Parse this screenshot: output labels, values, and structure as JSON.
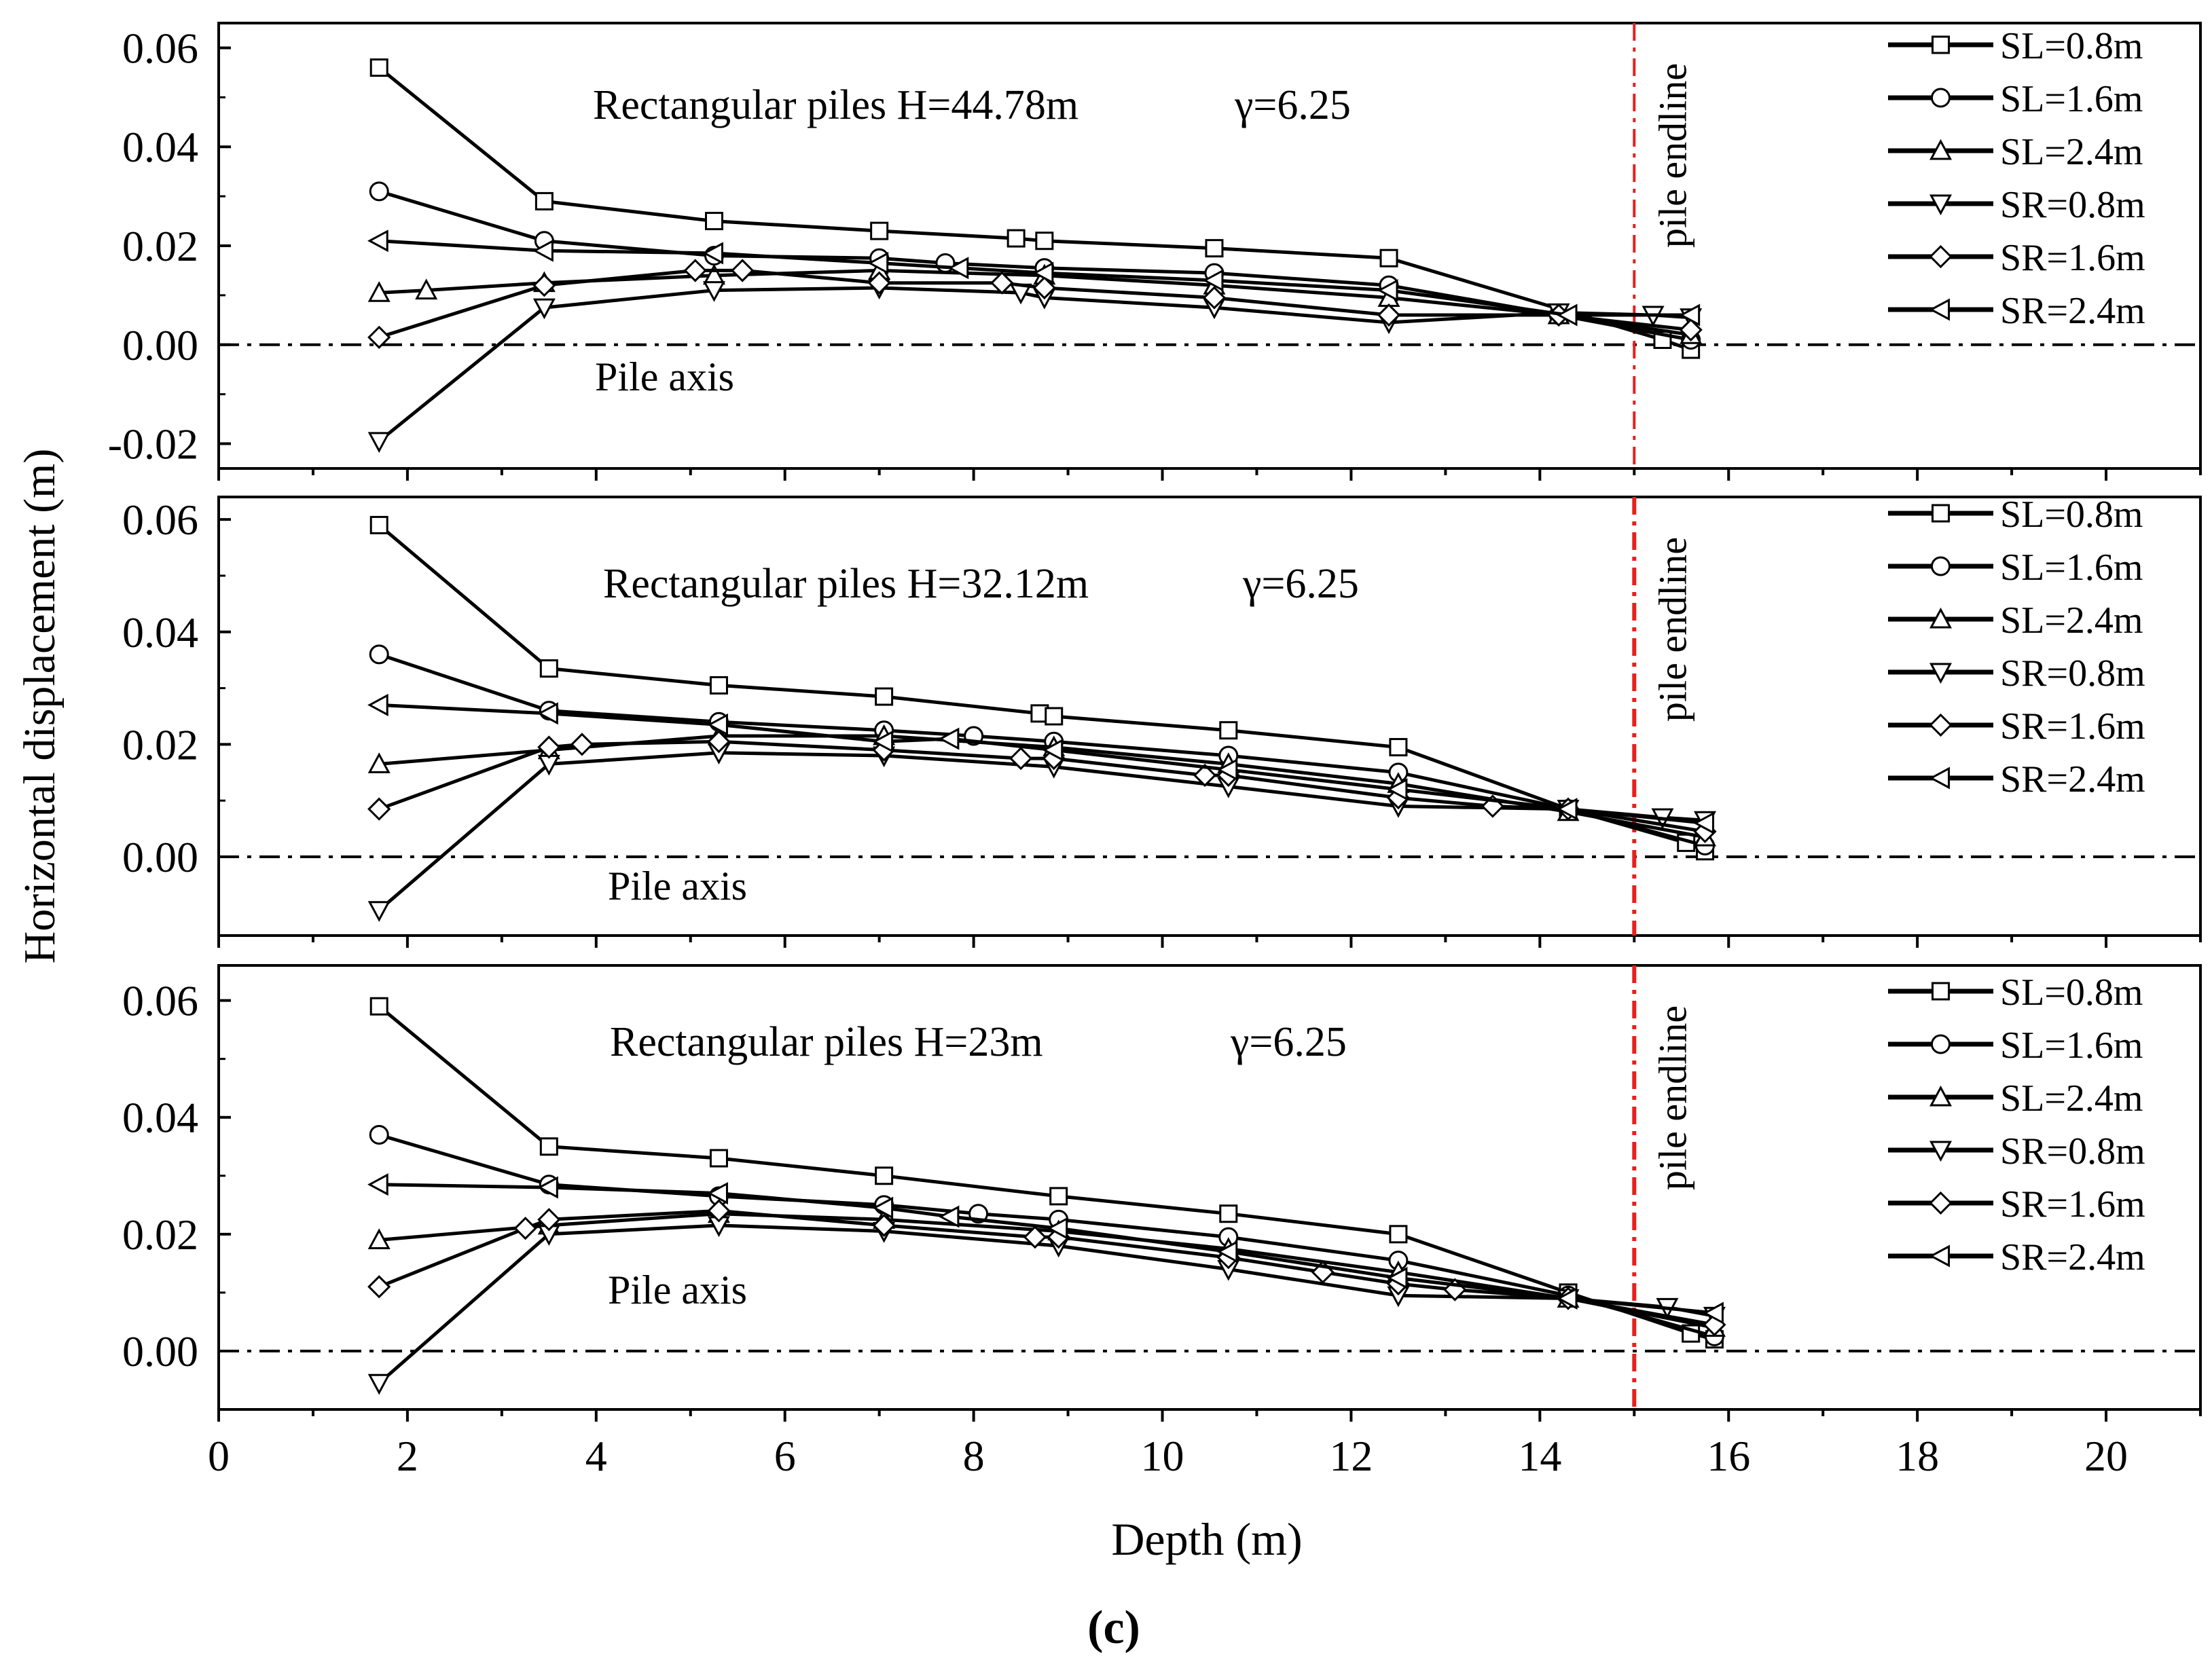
{
  "figure": {
    "panel_label": "(c)",
    "ylabel": "Horizontal displacement (m)",
    "xlabel": "Depth (m)",
    "x_ticks": [
      "0",
      "2",
      "4",
      "6",
      "8",
      "10",
      "12",
      "14",
      "16",
      "18",
      "20"
    ],
    "axis_label_pile_axis": "Pile axis",
    "endline_label": "pile endline",
    "endline_color": "#e8201c",
    "line_color": "#000000"
  },
  "chart_data": [
    {
      "type": "line",
      "title": "Rectangular piles  H=44.78m",
      "annotation_gamma": "γ=6.25",
      "pile_axis_label": "Pile axis",
      "xlim": [
        0,
        21
      ],
      "ylim": [
        -0.025,
        0.065
      ],
      "y_ticks": [
        "0.06",
        "0.04",
        "0.02",
        "0.00",
        "-0.02"
      ],
      "y_tick_values": [
        0.06,
        0.04,
        0.02,
        0.0,
        -0.02
      ],
      "pile_endline_x": 15,
      "legend": [
        "SL=0.8m",
        "SL=1.6m",
        "SL=2.4m",
        "SR=0.8m",
        "SR=1.6m",
        "SR=2.4m"
      ],
      "series": [
        {
          "name": "SL=0.8m",
          "marker": "square",
          "x": [
            1.7,
            3.45,
            5.25,
            7.0,
            8.45,
            8.75,
            10.55,
            12.4,
            15.3,
            15.6
          ],
          "y": [
            0.056,
            0.029,
            0.025,
            0.023,
            0.0215,
            0.021,
            0.0195,
            0.0175,
            0.001,
            -0.001
          ]
        },
        {
          "name": "SL=1.6m",
          "marker": "circle",
          "x": [
            1.7,
            3.45,
            5.25,
            7.0,
            7.7,
            8.75,
            10.55,
            12.4,
            14.2,
            15.6
          ],
          "y": [
            0.031,
            0.021,
            0.018,
            0.0175,
            0.0165,
            0.0155,
            0.0145,
            0.012,
            0.006,
            0.001
          ]
        },
        {
          "name": "SL=2.4m",
          "marker": "triangle-up",
          "x": [
            1.7,
            2.2,
            3.45,
            5.25,
            7.0,
            8.75,
            10.55,
            12.4,
            14.2,
            15.6
          ],
          "y": [
            0.0105,
            0.011,
            0.0125,
            0.014,
            0.015,
            0.014,
            0.012,
            0.0095,
            0.006,
            0.002
          ]
        },
        {
          "name": "SR=0.8m",
          "marker": "triangle-down",
          "x": [
            1.7,
            3.45,
            5.25,
            7.0,
            8.5,
            8.75,
            10.55,
            12.4,
            14.2,
            15.2,
            15.6
          ],
          "y": [
            -0.0195,
            0.0075,
            0.011,
            0.0115,
            0.0105,
            0.0095,
            0.0075,
            0.0045,
            0.0065,
            0.006,
            0.0055
          ]
        },
        {
          "name": "SR=1.6m",
          "marker": "diamond",
          "x": [
            1.7,
            3.45,
            5.05,
            5.55,
            7.0,
            8.3,
            8.75,
            10.55,
            12.4,
            14.2,
            15.6
          ],
          "y": [
            0.0015,
            0.012,
            0.015,
            0.015,
            0.0125,
            0.0125,
            0.0115,
            0.0095,
            0.006,
            0.006,
            0.003
          ]
        },
        {
          "name": "SR=2.4m",
          "marker": "triangle-left",
          "x": [
            1.7,
            3.45,
            5.25,
            7.0,
            7.85,
            8.75,
            10.55,
            12.4,
            14.3,
            15.6
          ],
          "y": [
            0.021,
            0.019,
            0.0185,
            0.0165,
            0.0155,
            0.0145,
            0.013,
            0.011,
            0.006,
            0.006
          ]
        }
      ]
    },
    {
      "type": "line",
      "title": "Rectangular piles  H=32.12m",
      "annotation_gamma": "γ=6.25",
      "pile_axis_label": "Pile axis",
      "xlim": [
        0,
        21
      ],
      "ylim": [
        -0.014,
        0.064
      ],
      "y_ticks": [
        "0.06",
        "0.04",
        "0.02",
        "0.00"
      ],
      "y_tick_values": [
        0.06,
        0.04,
        0.02,
        0.0
      ],
      "pile_endline_x": 15,
      "legend": [
        "SL=0.8m",
        "SL=1.6m",
        "SL=2.4m",
        "SR=0.8m",
        "SR=1.6m",
        "SR=2.4m"
      ],
      "series": [
        {
          "name": "SL=0.8m",
          "marker": "square",
          "x": [
            1.7,
            3.5,
            5.3,
            7.05,
            8.7,
            8.85,
            10.7,
            12.5,
            14.3,
            15.55,
            15.75
          ],
          "y": [
            0.059,
            0.0335,
            0.0305,
            0.0285,
            0.0255,
            0.025,
            0.0225,
            0.0195,
            0.0085,
            0.0025,
            0.001
          ]
        },
        {
          "name": "SL=1.6m",
          "marker": "circle",
          "x": [
            1.7,
            3.5,
            5.3,
            7.05,
            8.0,
            8.85,
            10.7,
            12.5,
            14.3,
            15.75
          ],
          "y": [
            0.036,
            0.026,
            0.024,
            0.0225,
            0.0215,
            0.0205,
            0.018,
            0.015,
            0.0085,
            0.002
          ]
        },
        {
          "name": "SL=2.4m",
          "marker": "triangle-up",
          "x": [
            1.7,
            3.5,
            5.3,
            7.05,
            8.85,
            10.7,
            12.5,
            14.3,
            15.75
          ],
          "y": [
            0.0165,
            0.019,
            0.0215,
            0.0215,
            0.0195,
            0.0165,
            0.013,
            0.008,
            0.0035
          ]
        },
        {
          "name": "SR=0.8m",
          "marker": "triangle-down",
          "x": [
            1.7,
            3.5,
            5.3,
            7.05,
            8.85,
            10.7,
            12.5,
            14.3,
            15.3,
            15.75
          ],
          "y": [
            -0.0095,
            0.0165,
            0.0185,
            0.018,
            0.016,
            0.0125,
            0.009,
            0.0085,
            0.007,
            0.0065
          ]
        },
        {
          "name": "SR=1.6m",
          "marker": "diamond",
          "x": [
            1.7,
            3.5,
            3.85,
            5.3,
            7.05,
            8.5,
            8.85,
            10.45,
            10.7,
            12.5,
            13.5,
            14.3,
            15.75
          ],
          "y": [
            0.0085,
            0.0195,
            0.02,
            0.0205,
            0.019,
            0.0175,
            0.0175,
            0.0145,
            0.0145,
            0.0105,
            0.009,
            0.0085,
            0.0045
          ]
        },
        {
          "name": "SR=2.4m",
          "marker": "triangle-left",
          "x": [
            1.7,
            3.5,
            5.3,
            7.05,
            7.75,
            8.85,
            10.7,
            12.5,
            14.3,
            15.75
          ],
          "y": [
            0.027,
            0.0255,
            0.0235,
            0.0205,
            0.021,
            0.019,
            0.0155,
            0.012,
            0.0085,
            0.006
          ]
        }
      ]
    },
    {
      "type": "line",
      "title": "Rectangular piles  H=23m",
      "annotation_gamma": "γ=6.25",
      "pile_axis_label": "Pile axis",
      "xlim": [
        0,
        21
      ],
      "ylim": [
        -0.01,
        0.066
      ],
      "y_ticks": [
        "0.06",
        "0.04",
        "0.02",
        "0.00"
      ],
      "y_tick_values": [
        0.06,
        0.04,
        0.02,
        0.0
      ],
      "pile_endline_x": 15,
      "legend": [
        "SL=0.8m",
        "SL=1.6m",
        "SL=2.4m",
        "SR=0.8m",
        "SR=1.6m",
        "SR=2.4m"
      ],
      "series": [
        {
          "name": "SL=0.8m",
          "marker": "square",
          "x": [
            1.7,
            3.5,
            5.3,
            7.05,
            8.9,
            10.7,
            12.5,
            14.3,
            15.6,
            15.85
          ],
          "y": [
            0.059,
            0.035,
            0.033,
            0.03,
            0.0265,
            0.0235,
            0.02,
            0.01,
            0.003,
            0.002
          ]
        },
        {
          "name": "SL=1.6m",
          "marker": "circle",
          "x": [
            1.7,
            3.5,
            5.3,
            7.05,
            8.05,
            8.9,
            10.7,
            12.5,
            14.3,
            15.85
          ],
          "y": [
            0.037,
            0.0285,
            0.0265,
            0.025,
            0.0235,
            0.0225,
            0.0195,
            0.0155,
            0.0095,
            0.0025
          ]
        },
        {
          "name": "SL=2.4m",
          "marker": "triangle-up",
          "x": [
            1.7,
            3.5,
            5.3,
            7.05,
            8.9,
            10.7,
            12.5,
            14.3,
            15.85
          ],
          "y": [
            0.019,
            0.0215,
            0.0235,
            0.0225,
            0.0205,
            0.0175,
            0.0135,
            0.009,
            0.004
          ]
        },
        {
          "name": "SR=0.8m",
          "marker": "triangle-down",
          "x": [
            1.7,
            3.5,
            5.3,
            7.05,
            8.9,
            10.7,
            12.5,
            14.3,
            15.35,
            15.85
          ],
          "y": [
            -0.0055,
            0.02,
            0.0215,
            0.0205,
            0.018,
            0.014,
            0.0095,
            0.009,
            0.0075,
            0.006
          ]
        },
        {
          "name": "SR=1.6m",
          "marker": "diamond",
          "x": [
            1.7,
            3.25,
            3.5,
            5.3,
            7.05,
            8.65,
            8.9,
            10.7,
            11.7,
            12.5,
            13.1,
            14.3,
            15.85
          ],
          "y": [
            0.011,
            0.021,
            0.0225,
            0.024,
            0.0215,
            0.0195,
            0.0195,
            0.016,
            0.0135,
            0.0115,
            0.0105,
            0.009,
            0.0045
          ]
        },
        {
          "name": "SR=2.4m",
          "marker": "triangle-left",
          "x": [
            1.7,
            3.5,
            5.3,
            7.05,
            7.75,
            8.9,
            10.7,
            12.5,
            14.3,
            15.85
          ],
          "y": [
            0.0285,
            0.028,
            0.027,
            0.0245,
            0.023,
            0.021,
            0.017,
            0.0125,
            0.009,
            0.0065
          ]
        }
      ]
    }
  ]
}
